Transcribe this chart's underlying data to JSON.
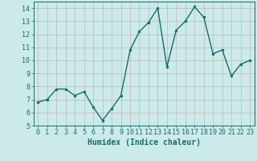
{
  "x": [
    0,
    1,
    2,
    3,
    4,
    5,
    6,
    7,
    8,
    9,
    10,
    11,
    12,
    13,
    14,
    15,
    16,
    17,
    18,
    19,
    20,
    21,
    22,
    23
  ],
  "y": [
    6.8,
    7.0,
    7.8,
    7.8,
    7.3,
    7.6,
    6.4,
    5.4,
    6.3,
    7.3,
    10.8,
    12.2,
    12.9,
    14.0,
    9.5,
    12.3,
    13.0,
    14.1,
    13.3,
    10.5,
    10.8,
    8.8,
    9.7,
    10.0
  ],
  "line_color": "#1a6b6b",
  "marker": "o",
  "marker_size": 2,
  "line_width": 1.0,
  "bg_color": "#cceaea",
  "grid_color": "#c0a8a8",
  "xlabel": "Humidex (Indice chaleur)",
  "xlim": [
    -0.5,
    23.5
  ],
  "ylim": [
    5,
    14.5
  ],
  "yticks": [
    5,
    6,
    7,
    8,
    9,
    10,
    11,
    12,
    13,
    14
  ],
  "xticks": [
    0,
    1,
    2,
    3,
    4,
    5,
    6,
    7,
    8,
    9,
    10,
    11,
    12,
    13,
    14,
    15,
    16,
    17,
    18,
    19,
    20,
    21,
    22,
    23
  ],
  "tick_label_size": 6,
  "xlabel_size": 7,
  "axis_color": "#1a6b6b"
}
